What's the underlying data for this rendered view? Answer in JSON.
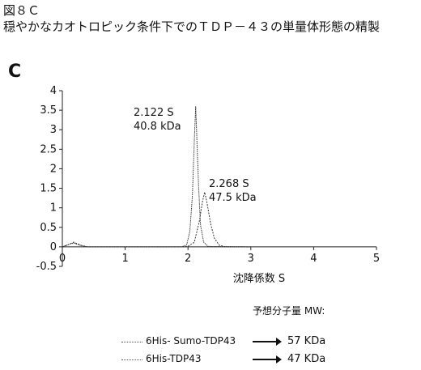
{
  "figure": {
    "label": "図８Ｃ",
    "title": "穏やかなカオトロピック条件下でのＴＤＰ－４３の単量体形態の精製",
    "panel": "C"
  },
  "chart_data": {
    "type": "line",
    "xlabel": "沈降係数 S",
    "ylabel": "",
    "xlim": [
      0,
      5
    ],
    "ylim": [
      -0.5,
      4
    ],
    "x_ticks": [
      0,
      1,
      2,
      3,
      4,
      5
    ],
    "y_ticks": [
      -0.5,
      0,
      0.5,
      1,
      1.5,
      2,
      2.5,
      3,
      3.5,
      4
    ],
    "grid": false,
    "series": [
      {
        "name": "6His- Sumo-TDP43",
        "peak_x": 2.266,
        "points": [
          [
            0,
            0
          ],
          [
            0.1,
            0.06
          ],
          [
            0.18,
            0.12
          ],
          [
            0.3,
            0.04
          ],
          [
            0.4,
            0
          ],
          [
            1.9,
            0
          ],
          [
            2.0,
            0.01
          ],
          [
            2.1,
            0.12
          ],
          [
            2.18,
            0.65
          ],
          [
            2.23,
            1.15
          ],
          [
            2.266,
            1.4
          ],
          [
            2.3,
            1.15
          ],
          [
            2.36,
            0.6
          ],
          [
            2.42,
            0.22
          ],
          [
            2.5,
            0.04
          ],
          [
            2.6,
            0
          ],
          [
            3.0,
            0
          ]
        ]
      },
      {
        "name": "6His-TDP43",
        "peak_x": 2.122,
        "points": [
          [
            0,
            0
          ],
          [
            0.1,
            0.06
          ],
          [
            0.18,
            0.1
          ],
          [
            0.3,
            0.03
          ],
          [
            0.4,
            0
          ],
          [
            1.9,
            0
          ],
          [
            1.98,
            0.05
          ],
          [
            2.03,
            0.4
          ],
          [
            2.07,
            1.3
          ],
          [
            2.1,
            2.7
          ],
          [
            2.122,
            3.6
          ],
          [
            2.14,
            2.8
          ],
          [
            2.17,
            1.5
          ],
          [
            2.2,
            0.55
          ],
          [
            2.25,
            0.12
          ],
          [
            2.32,
            0.01
          ],
          [
            3.0,
            0
          ]
        ]
      }
    ],
    "annotations": [
      {
        "x": 2.122,
        "line1": "2.122 S",
        "line2": "40.8 kDa"
      },
      {
        "x": 2.266,
        "line1": "2.268 S",
        "line2": "47.5 kDa"
      }
    ]
  },
  "legend": {
    "header": "予想分子量 MW:",
    "items": [
      {
        "name": "6His- Sumo-TDP43",
        "mw": "57 KDa"
      },
      {
        "name": "6His-TDP43",
        "mw": "47 KDa"
      }
    ]
  }
}
